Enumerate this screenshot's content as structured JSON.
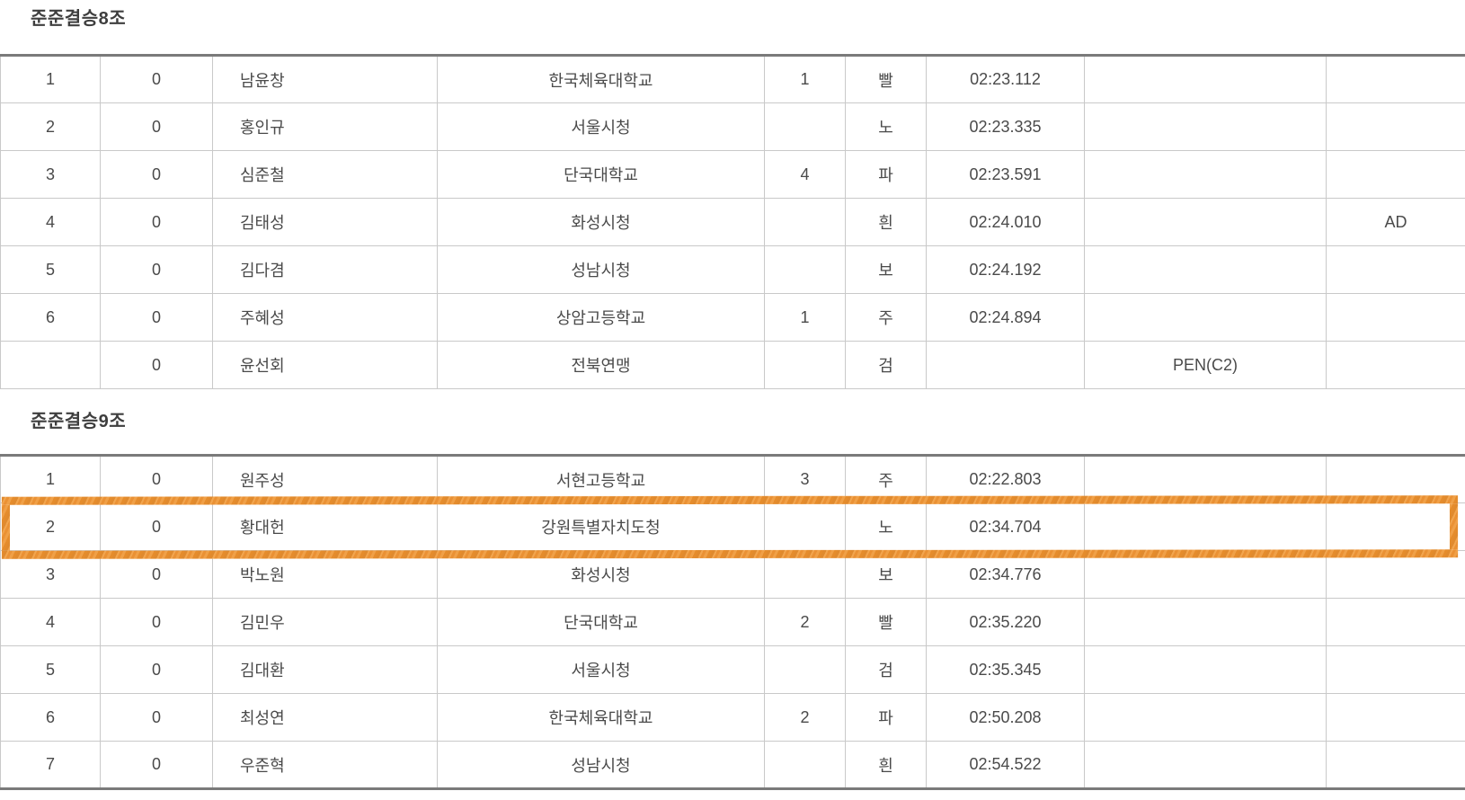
{
  "styles": {
    "text_color": "#4A4A4A",
    "title_color": "#3E3E3E",
    "grid_color": "#C9C9C9",
    "dark_border_color": "#7A7A7A",
    "highlight_color": "#EC9435"
  },
  "columns": [
    "rank",
    "score",
    "name",
    "team",
    "num",
    "color",
    "time",
    "penalty",
    "note"
  ],
  "tables": [
    {
      "title": "준준결승8조",
      "highlight_row": null,
      "border_bottom": "thin",
      "rows": [
        {
          "rank": "1",
          "score": "0",
          "name": "남윤창",
          "team": "한국체육대학교",
          "num": "1",
          "color": "빨",
          "time": "02:23.112",
          "penalty": "",
          "note": ""
        },
        {
          "rank": "2",
          "score": "0",
          "name": "홍인규",
          "team": "서울시청",
          "num": "",
          "color": "노",
          "time": "02:23.335",
          "penalty": "",
          "note": ""
        },
        {
          "rank": "3",
          "score": "0",
          "name": "심준철",
          "team": "단국대학교",
          "num": "4",
          "color": "파",
          "time": "02:23.591",
          "penalty": "",
          "note": ""
        },
        {
          "rank": "4",
          "score": "0",
          "name": "김태성",
          "team": "화성시청",
          "num": "",
          "color": "흰",
          "time": "02:24.010",
          "penalty": "",
          "note": "AD"
        },
        {
          "rank": "5",
          "score": "0",
          "name": "김다겸",
          "team": "성남시청",
          "num": "",
          "color": "보",
          "time": "02:24.192",
          "penalty": "",
          "note": ""
        },
        {
          "rank": "6",
          "score": "0",
          "name": "주혜성",
          "team": "상암고등학교",
          "num": "1",
          "color": "주",
          "time": "02:24.894",
          "penalty": "",
          "note": ""
        },
        {
          "rank": "",
          "score": "0",
          "name": "윤선회",
          "team": "전북연맹",
          "num": "",
          "color": "검",
          "time": "",
          "penalty": "PEN(C2)",
          "note": ""
        }
      ]
    },
    {
      "title": "준준결승9조",
      "highlight_row": 1,
      "border_bottom": "thick",
      "rows": [
        {
          "rank": "1",
          "score": "0",
          "name": "원주성",
          "team": "서현고등학교",
          "num": "3",
          "color": "주",
          "time": "02:22.803",
          "penalty": "",
          "note": ""
        },
        {
          "rank": "2",
          "score": "0",
          "name": "황대헌",
          "team": "강원특별자치도청",
          "num": "",
          "color": "노",
          "time": "02:34.704",
          "penalty": "",
          "note": ""
        },
        {
          "rank": "3",
          "score": "0",
          "name": "박노원",
          "team": "화성시청",
          "num": "",
          "color": "보",
          "time": "02:34.776",
          "penalty": "",
          "note": ""
        },
        {
          "rank": "4",
          "score": "0",
          "name": "김민우",
          "team": "단국대학교",
          "num": "2",
          "color": "빨",
          "time": "02:35.220",
          "penalty": "",
          "note": ""
        },
        {
          "rank": "5",
          "score": "0",
          "name": "김대환",
          "team": "서울시청",
          "num": "",
          "color": "검",
          "time": "02:35.345",
          "penalty": "",
          "note": ""
        },
        {
          "rank": "6",
          "score": "0",
          "name": "최성연",
          "team": "한국체육대학교",
          "num": "2",
          "color": "파",
          "time": "02:50.208",
          "penalty": "",
          "note": ""
        },
        {
          "rank": "7",
          "score": "0",
          "name": "우준혁",
          "team": "성남시청",
          "num": "",
          "color": "흰",
          "time": "02:54.522",
          "penalty": "",
          "note": ""
        }
      ]
    }
  ]
}
